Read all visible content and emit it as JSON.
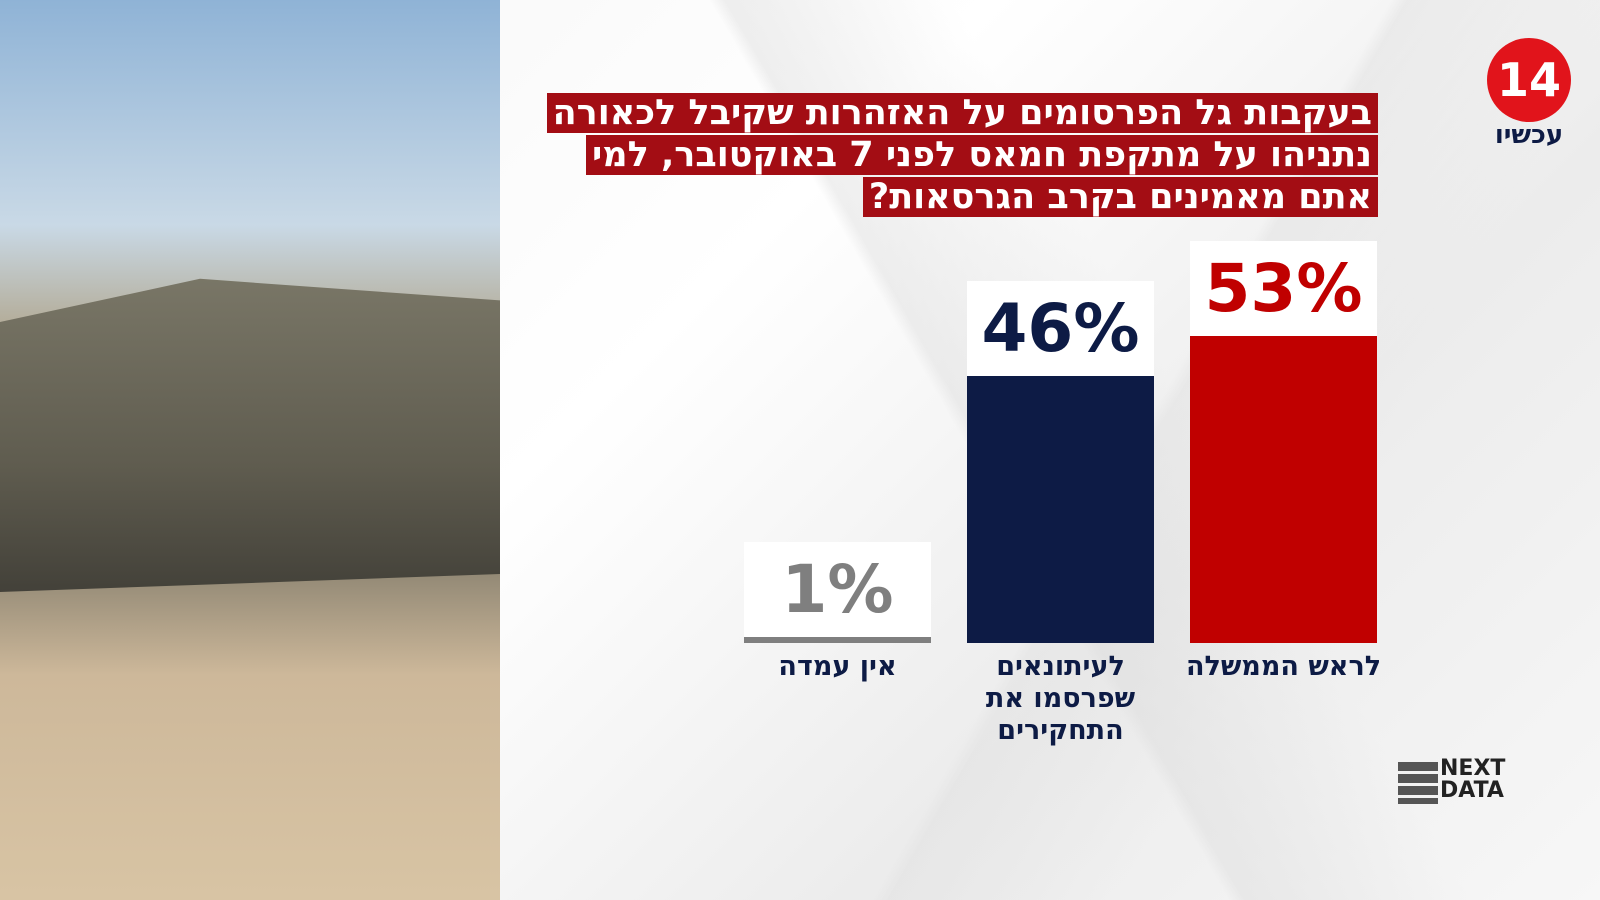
{
  "chart_data": {
    "type": "bar",
    "title": "בעקבות גל הפרסומים על האזהרות שקיבל לכאורה נתניהו על מתקפת חמאס לפני 7 באוקטובר, למי אתם מאמינים בקרב הגרסאות?",
    "categories": [
      "לראש הממשלה",
      "לעיתונאים שפרסמו את התחקירים",
      "אין עמדה"
    ],
    "values": [
      53,
      46,
      1
    ],
    "value_labels": [
      "53%",
      "46%",
      "1%"
    ],
    "colors": [
      "#c00000",
      "#0d1b45",
      "#7f7f7f"
    ]
  },
  "logo": {
    "number": "14",
    "name": "עכשיו"
  },
  "source_logo": {
    "line1": "NEXT",
    "line2": "DATA"
  }
}
